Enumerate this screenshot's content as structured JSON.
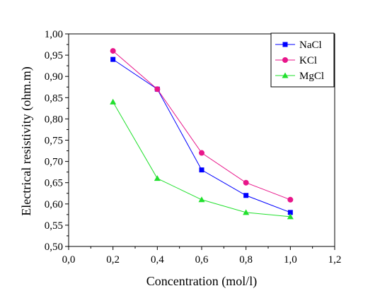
{
  "chart_data": {
    "type": "line",
    "title": "",
    "xlabel": "Concentration (mol/l)",
    "ylabel": "Electrical resistivity (ohm.m)",
    "xlim": [
      0.0,
      1.2
    ],
    "ylim": [
      0.5,
      1.0
    ],
    "x_ticks": [
      "0,0",
      "0,2",
      "0,4",
      "0,6",
      "0,8",
      "1,0",
      "1,2"
    ],
    "y_ticks": [
      "0,50",
      "0,55",
      "0,60",
      "0,65",
      "0,70",
      "0,75",
      "0,80",
      "0,85",
      "0,90",
      "0,95",
      "1,00"
    ],
    "grid": false,
    "legend_position": "top-right",
    "x": [
      0.2,
      0.4,
      0.6,
      0.8,
      1.0
    ],
    "series": [
      {
        "name": "NaCl",
        "color": "#0000ff",
        "marker": "square",
        "values": [
          0.94,
          0.87,
          0.68,
          0.62,
          0.58
        ]
      },
      {
        "name": "KCl",
        "color": "#e8168a",
        "marker": "circle",
        "values": [
          0.96,
          0.87,
          0.72,
          0.65,
          0.61
        ]
      },
      {
        "name": "MgCl",
        "color": "#22e02e",
        "marker": "triangle",
        "values": [
          0.84,
          0.66,
          0.61,
          0.58,
          0.57
        ]
      }
    ]
  }
}
